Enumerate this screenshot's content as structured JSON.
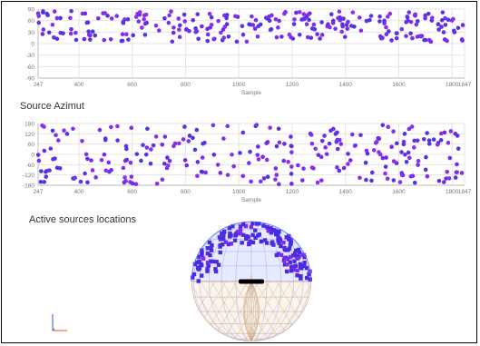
{
  "charts": {
    "elevation": {
      "chart_data": {
        "type": "scatter",
        "title": "",
        "xlabel": "Sample",
        "xlim": [
          247,
          1847
        ],
        "ylim": [
          -90,
          90
        ],
        "x_ticks": [
          247,
          400,
          600,
          800,
          1000,
          1200,
          1400,
          1600,
          1800,
          1847
        ],
        "x_tick_labels": [
          "247",
          "400",
          "600",
          "800",
          "1000",
          "1200",
          "1400",
          "1600",
          "1800",
          "1847"
        ],
        "y_ticks": [
          90,
          60,
          30,
          0,
          -30,
          -60,
          -90
        ],
        "y_tick_labels": [
          "90",
          "60",
          "30",
          "0",
          "-30",
          "-60",
          "-90"
        ],
        "grid": true,
        "points_approx": {
          "count": 260,
          "x_range": [
            247,
            1847
          ],
          "y_range": [
            5,
            85
          ],
          "colors": [
            "#6a2ce8",
            "#7b2ff0",
            "#4e35e6",
            "#8e2ee8"
          ]
        }
      }
    },
    "azimut": {
      "chart_data": {
        "type": "scatter",
        "title": "Source Azimut",
        "xlabel": "Sample",
        "xlim": [
          247,
          1847
        ],
        "ylim": [
          -180,
          180
        ],
        "x_ticks": [
          247,
          400,
          600,
          800,
          1000,
          1200,
          1400,
          1600,
          1800,
          1847
        ],
        "x_tick_labels": [
          "247",
          "400",
          "600",
          "800",
          "1000",
          "1200",
          "1400",
          "1600",
          "1800",
          "1847"
        ],
        "y_ticks": [
          180,
          120,
          60,
          0,
          -60,
          -120,
          -180
        ],
        "y_tick_labels": [
          "180",
          "120",
          "60",
          "0",
          "-60",
          "-120",
          "-180"
        ],
        "grid": true,
        "points_approx": {
          "count": 260,
          "x_range": [
            247,
            1847
          ],
          "y_range": [
            -175,
            175
          ],
          "colors": [
            "#6a2ce8",
            "#7b2ff0",
            "#4e35e6",
            "#8e2ee8"
          ]
        }
      }
    },
    "locations": {
      "title": "Active sources locations",
      "upper_hemisphere_color": "#3b55ff",
      "lower_hemisphere_color": "#c8a07a",
      "source_color": "#4a2be0",
      "axis_x_color": "#ff4444",
      "axis_y_color": "#22aa22",
      "axis_z_color": "#2255ff"
    }
  }
}
